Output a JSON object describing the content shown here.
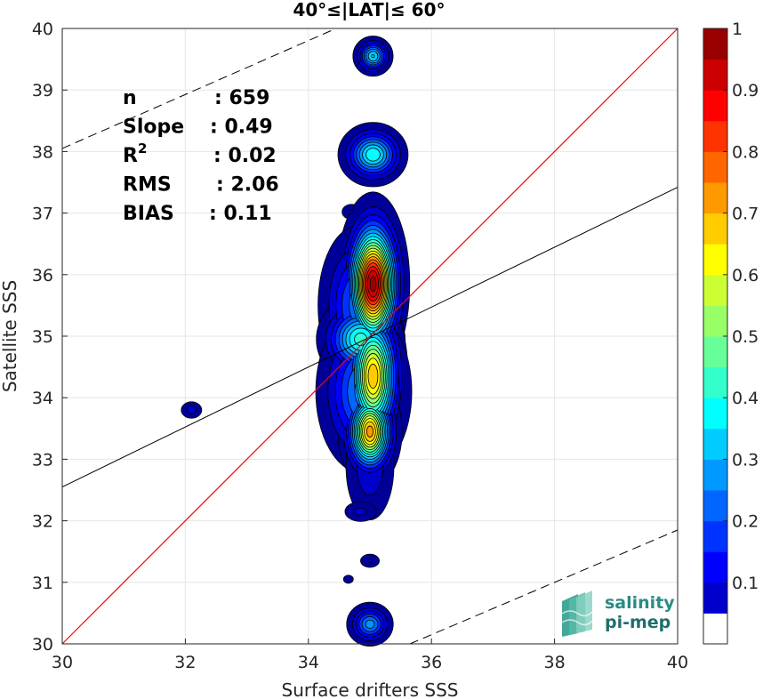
{
  "chart_data": {
    "type": "contour-scatter",
    "title": "40°≤|LAT|≤ 60°",
    "xlabel": "Surface drifters SSS",
    "ylabel": "Satellite SSS",
    "xlim": [
      30,
      40
    ],
    "ylim": [
      30,
      40
    ],
    "xticks": [
      30,
      32,
      34,
      36,
      38,
      40
    ],
    "yticks": [
      30,
      31,
      32,
      33,
      34,
      35,
      36,
      37,
      38,
      39,
      40
    ],
    "grid": true,
    "stats": [
      {
        "name": "n",
        "value": ": 659"
      },
      {
        "name": "Slope",
        "value": ": 0.49"
      },
      {
        "name": "R",
        "sup": "2",
        "value": ": 0.02"
      },
      {
        "name": "RMS",
        "value": ": 2.06"
      },
      {
        "name": "BIAS",
        "value": ": 0.11"
      }
    ],
    "identity_line": {
      "color": "#ff0000",
      "points": [
        [
          30,
          30
        ],
        [
          40,
          40
        ]
      ]
    },
    "regression_line": {
      "color": "#000000",
      "points": [
        [
          30,
          32.55
        ],
        [
          40,
          37.42
        ]
      ]
    },
    "bound_lines": [
      {
        "style": "dashed",
        "points": [
          [
            30,
            38.05
          ],
          [
            34.45,
            40
          ]
        ]
      },
      {
        "style": "dashed",
        "points": [
          [
            35.65,
            30
          ],
          [
            40,
            31.85
          ]
        ]
      }
    ],
    "colorbar": {
      "min": 0,
      "max": 1,
      "levels": 20,
      "ticks": [
        "0.1",
        "0.2",
        "0.3",
        "0.4",
        "0.5",
        "0.6",
        "0.7",
        "0.8",
        "0.9",
        "1"
      ]
    },
    "density_blobs": [
      {
        "cx": 35.05,
        "cy": 39.55,
        "peak": 0.38,
        "sx": 0.14,
        "sy": 0.14
      },
      {
        "cx": 35.05,
        "cy": 37.95,
        "peak": 0.42,
        "sx": 0.24,
        "sy": 0.22
      },
      {
        "cx": 34.7,
        "cy": 37.02,
        "peak": 0.08,
        "sx": 0.1,
        "sy": 0.08
      },
      {
        "cx": 35.0,
        "cy": 36.95,
        "peak": 0.06,
        "sx": 0.08,
        "sy": 0.06
      },
      {
        "cx": 35.05,
        "cy": 35.85,
        "peak": 1.0,
        "sx": 0.22,
        "sy": 0.55
      },
      {
        "cx": 34.8,
        "cy": 35.5,
        "peak": 0.25,
        "sx": 0.3,
        "sy": 0.6
      },
      {
        "cx": 34.85,
        "cy": 34.95,
        "peak": 0.45,
        "sx": 0.3,
        "sy": 0.3
      },
      {
        "cx": 35.05,
        "cy": 34.35,
        "peak": 0.72,
        "sx": 0.22,
        "sy": 0.55
      },
      {
        "cx": 34.9,
        "cy": 34.1,
        "peak": 0.3,
        "sx": 0.35,
        "sy": 0.6
      },
      {
        "cx": 35.0,
        "cy": 33.45,
        "peak": 0.75,
        "sx": 0.2,
        "sy": 0.35
      },
      {
        "cx": 35.0,
        "cy": 32.9,
        "peak": 0.12,
        "sx": 0.22,
        "sy": 0.5
      },
      {
        "cx": 34.85,
        "cy": 32.15,
        "peak": 0.09,
        "sx": 0.16,
        "sy": 0.1
      },
      {
        "cx": 35.0,
        "cy": 31.35,
        "peak": 0.08,
        "sx": 0.1,
        "sy": 0.07
      },
      {
        "cx": 34.65,
        "cy": 31.05,
        "peak": 0.06,
        "sx": 0.06,
        "sy": 0.05
      },
      {
        "cx": 35.0,
        "cy": 30.32,
        "peak": 0.3,
        "sx": 0.17,
        "sy": 0.16
      },
      {
        "cx": 32.1,
        "cy": 33.8,
        "peak": 0.1,
        "sx": 0.1,
        "sy": 0.08
      }
    ]
  },
  "logo": {
    "line1": "salinity",
    "line2": "pi-mep"
  }
}
